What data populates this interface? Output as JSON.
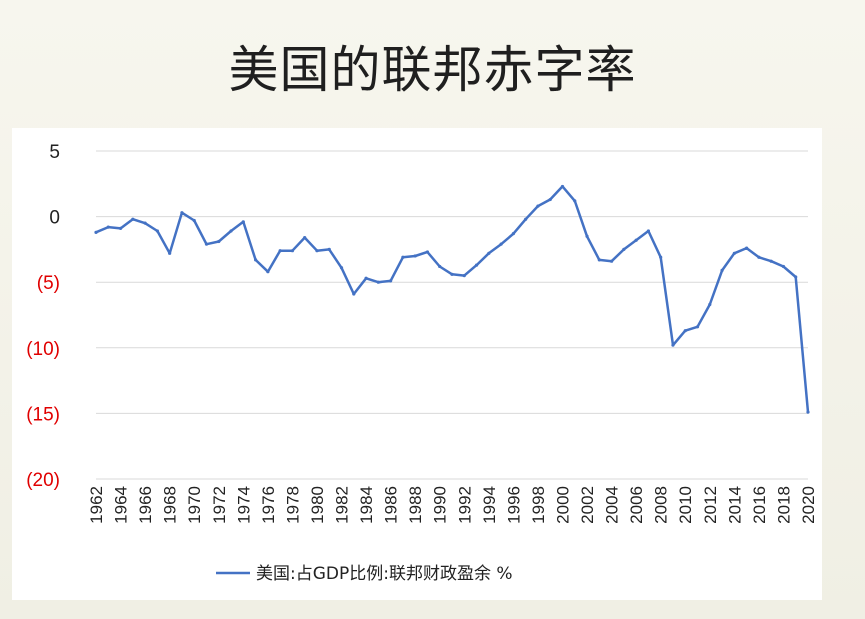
{
  "slide": {
    "title": "美国的联邦赤字率"
  },
  "colors": {
    "line": "#4472c4",
    "negative_tick": "#e00000",
    "positive_tick": "#222222",
    "grid": "#d9d9d9"
  },
  "chart_data": {
    "type": "line",
    "title": "",
    "xlabel": "",
    "ylabel": "",
    "ylim": [
      -20,
      5
    ],
    "y_ticks": [
      {
        "value": 5,
        "label": "5",
        "negative": false
      },
      {
        "value": 0,
        "label": "0",
        "negative": false
      },
      {
        "value": -5,
        "label": "(5)",
        "negative": true
      },
      {
        "value": -10,
        "label": "(10)",
        "negative": true
      },
      {
        "value": -15,
        "label": "(15)",
        "negative": true
      },
      {
        "value": -20,
        "label": "(20)",
        "negative": true
      }
    ],
    "x_tick_labels": [
      "1962",
      "1964",
      "1966",
      "1968",
      "1970",
      "1972",
      "1974",
      "1976",
      "1978",
      "1980",
      "1982",
      "1984",
      "1986",
      "1988",
      "1990",
      "1992",
      "1994",
      "1996",
      "1998",
      "2000",
      "2002",
      "2004",
      "2006",
      "2008",
      "2010",
      "2012",
      "2014",
      "2016",
      "2018",
      "2020"
    ],
    "grid": true,
    "legend_position": "bottom",
    "series": [
      {
        "name": "美国:占GDP比例:联邦财政盈余 %",
        "x": [
          1962,
          1963,
          1964,
          1965,
          1966,
          1967,
          1968,
          1969,
          1970,
          1971,
          1972,
          1973,
          1974,
          1975,
          1976,
          1977,
          1978,
          1979,
          1980,
          1981,
          1982,
          1983,
          1984,
          1985,
          1986,
          1987,
          1988,
          1989,
          1990,
          1991,
          1992,
          1993,
          1994,
          1995,
          1996,
          1997,
          1998,
          1999,
          2000,
          2001,
          2002,
          2003,
          2004,
          2005,
          2006,
          2007,
          2008,
          2009,
          2010,
          2011,
          2012,
          2013,
          2014,
          2015,
          2016,
          2017,
          2018,
          2019,
          2020
        ],
        "values": [
          -1.2,
          -0.8,
          -0.9,
          -0.2,
          -0.5,
          -1.1,
          -2.8,
          0.3,
          -0.3,
          -2.1,
          -1.9,
          -1.1,
          -0.4,
          -3.3,
          -4.2,
          -2.6,
          -2.6,
          -1.6,
          -2.6,
          -2.5,
          -3.9,
          -5.9,
          -4.7,
          -5.0,
          -4.9,
          -3.1,
          -3.0,
          -2.7,
          -3.8,
          -4.4,
          -4.5,
          -3.7,
          -2.8,
          -2.1,
          -1.3,
          -0.2,
          0.8,
          1.3,
          2.3,
          1.2,
          -1.5,
          -3.3,
          -3.4,
          -2.5,
          -1.8,
          -1.1,
          -3.1,
          -9.8,
          -8.7,
          -8.4,
          -6.7,
          -4.1,
          -2.8,
          -2.4,
          -3.1,
          -3.4,
          -3.8,
          -4.6,
          -14.9
        ]
      }
    ]
  }
}
